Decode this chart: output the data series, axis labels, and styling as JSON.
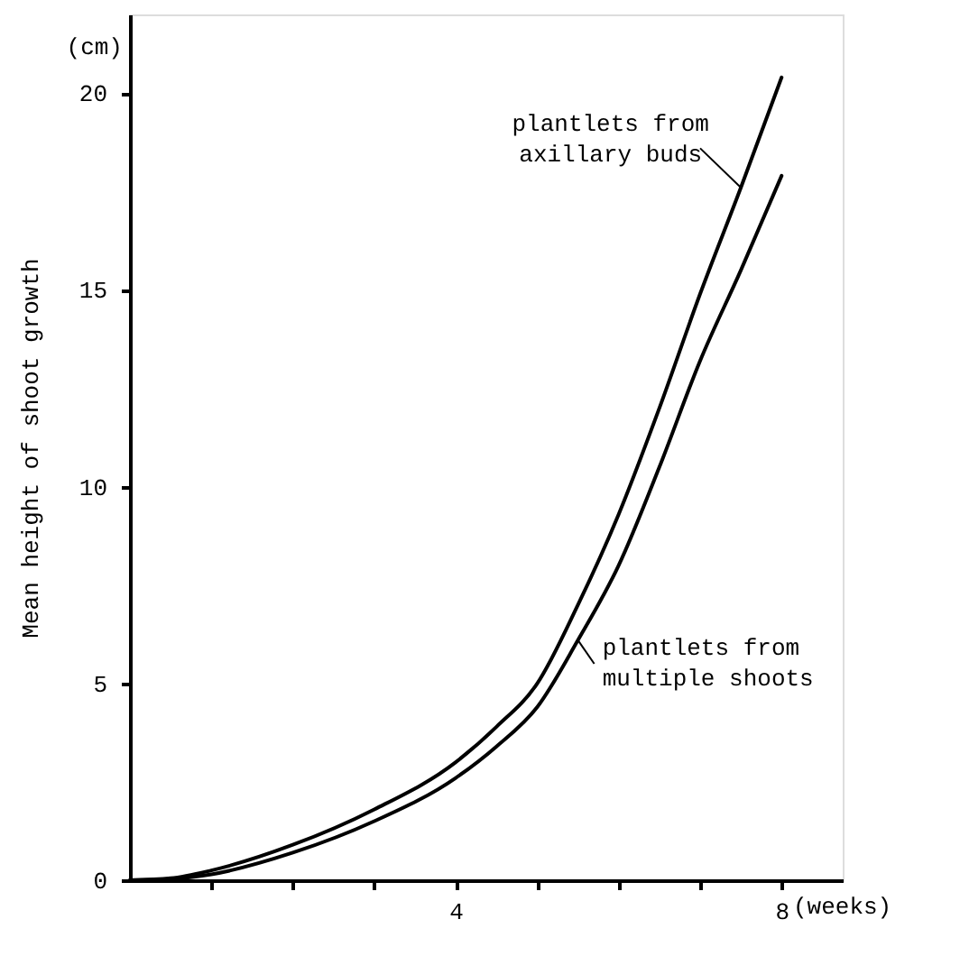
{
  "chart_data": {
    "type": "line",
    "ylabel": "Mean height of shoot growth",
    "xlabel": "(weeks)",
    "annotations": [
      "(cm)"
    ],
    "x": [
      0,
      0.5,
      1,
      2,
      3,
      4,
      4.5,
      5,
      5.5,
      6,
      6.5,
      7,
      7.5,
      8
    ],
    "series": [
      {
        "name": "plantlets from axillary buds",
        "color": "#000000",
        "values": [
          0,
          0.05,
          0.25,
          0.9,
          1.8,
          3.0,
          3.9,
          5.0,
          7.0,
          9.3,
          12.0,
          14.9,
          17.6,
          20.4
        ]
      },
      {
        "name": "plantlets from multiple shoots",
        "color": "#000000",
        "values": [
          0,
          0.03,
          0.15,
          0.7,
          1.5,
          2.6,
          3.4,
          4.4,
          6.1,
          8.0,
          10.5,
          13.2,
          15.5,
          17.9
        ]
      }
    ],
    "xlim": [
      0,
      8.75
    ],
    "xticks": [
      {
        "value": 1,
        "label": null
      },
      {
        "value": 2,
        "label": null
      },
      {
        "value": 3,
        "label": null
      },
      4,
      {
        "value": 5,
        "label": null
      },
      {
        "value": 6,
        "label": null
      },
      {
        "value": 7,
        "label": null
      },
      8
    ],
    "ylim": [
      0,
      22
    ],
    "yticks": [
      0,
      5,
      10,
      15,
      20
    ],
    "grid": false,
    "marker": "none",
    "line_style": "solid"
  }
}
